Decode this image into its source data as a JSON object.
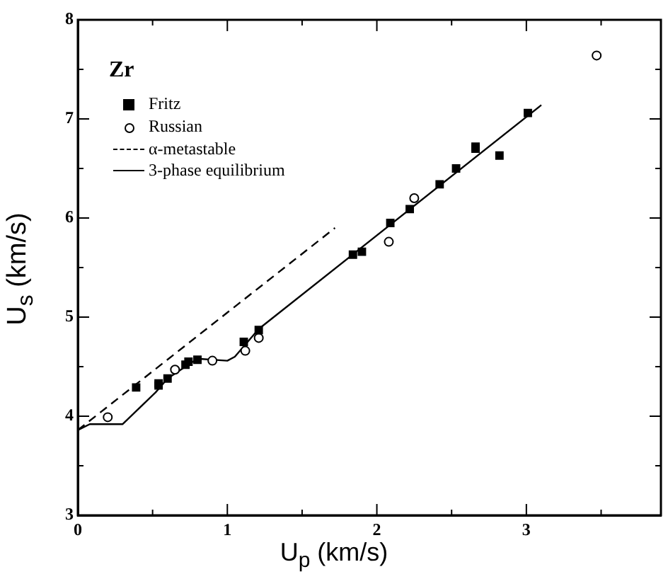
{
  "chart_data": {
    "type": "scatter",
    "annotations": [
      "Zr"
    ],
    "xlabel": "U$_{p}$ (km/s)",
    "ylabel": "U$_{s}$ (km/s)",
    "xlim": [
      0,
      3.9
    ],
    "ylim": [
      3,
      8
    ],
    "xticks": [
      0,
      {
        "value": 0.5,
        "label": null
      },
      1,
      {
        "value": 1.5,
        "label": null
      },
      2,
      {
        "value": 2.5,
        "label": null
      },
      3,
      {
        "value": 3.5,
        "label": null
      }
    ],
    "yticks": [
      3,
      {
        "value": 3.5,
        "label": null
      },
      4,
      {
        "value": 4.5,
        "label": null
      },
      5,
      {
        "value": 5.5,
        "label": null
      },
      6,
      {
        "value": 6.5,
        "label": null
      },
      7,
      {
        "value": 7.5,
        "label": null
      },
      8
    ],
    "grid": false,
    "legend": "top left",
    "series": [
      {
        "name": "Fritz",
        "type": "scatter",
        "marker": "square",
        "color": "#000000",
        "x": [
          0.39,
          0.54,
          0.54,
          0.6,
          0.72,
          0.74,
          0.8,
          1.11,
          1.21,
          1.84,
          1.9,
          2.09,
          2.22,
          2.42,
          2.53,
          2.66,
          2.66,
          2.82,
          3.01
        ],
        "values": [
          4.29,
          4.31,
          4.33,
          4.38,
          4.52,
          4.55,
          4.57,
          4.75,
          4.87,
          5.63,
          5.66,
          5.95,
          6.09,
          6.34,
          6.5,
          6.72,
          6.7,
          6.63,
          7.06
        ]
      },
      {
        "name": "Russian",
        "type": "scatter",
        "marker": "circle",
        "color": "#000000",
        "x": [
          0.2,
          0.65,
          0.9,
          1.12,
          1.21,
          2.08,
          2.25,
          3.47
        ],
        "values": [
          3.99,
          4.47,
          4.56,
          4.66,
          4.79,
          5.76,
          6.2,
          7.64
        ]
      },
      {
        "name": "α-metastable",
        "type": "line",
        "marker": "none",
        "line_style": "dashed",
        "color": "#000000",
        "x": [
          0,
          1.72
        ],
        "values": [
          3.86,
          5.9
        ]
      },
      {
        "name": "3-phase equilibrium",
        "type": "line",
        "marker": "none",
        "line_style": "solid",
        "color": "#000000",
        "x": [
          0,
          0.08,
          0.3,
          0.52,
          0.6,
          0.8,
          1.0,
          1.05,
          1.21,
          3.1
        ],
        "values": [
          3.86,
          3.92,
          3.92,
          4.24,
          4.38,
          4.58,
          4.56,
          4.6,
          4.88,
          7.14
        ]
      }
    ]
  }
}
